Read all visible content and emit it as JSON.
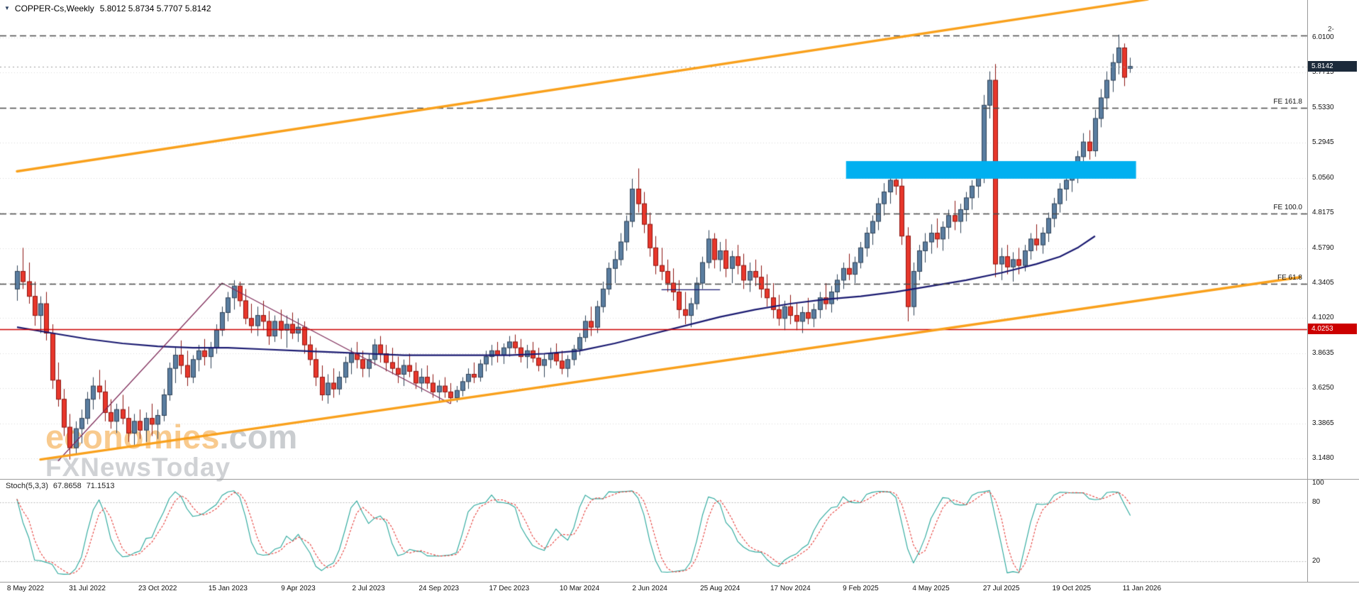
{
  "header": {
    "symbol_marker": "▼",
    "symbol": "COPPER-Cs,Weekly",
    "ohlc": "5.8012 5.8734 5.7707 5.8142"
  },
  "watermark": {
    "line1_main": "economies",
    "line1_suffix": ".com",
    "line2": "FXNewsToday"
  },
  "indicator": {
    "label": "Stoch(5,3,3)",
    "value_main": "67.8658",
    "value_signal": "71.1513"
  },
  "badges": {
    "current_price": "5.8142",
    "line_price": "4.0253"
  },
  "axis": {
    "stoch_ticks": [
      "100",
      "80",
      "20"
    ]
  },
  "annotations": {
    "fib_labels": [
      {
        "text": "FE 161.8",
        "price": 5.533
      },
      {
        "text": "FE 100.0",
        "price": 4.813
      },
      {
        "text": "FE 61.8",
        "price": 4.336
      }
    ],
    "top_right_label": {
      "text": "2-",
      "price": 6.025
    }
  },
  "colors": {
    "up": "#5a7da0",
    "up_border": "#2f4257",
    "down": "#e8372b",
    "down_border": "#8c1510",
    "ma": "#191970",
    "trend": "#f9a01b",
    "zone": "#00b0f0",
    "wave": "#7d2957",
    "stoch_k": "#26a69a",
    "stoch_d": "#e53935",
    "dashed": "#4a4a4a",
    "grid": "#d9d9d9",
    "hline": "#cc0000",
    "current_badge_bg": "#1c2a3a"
  },
  "chart_data": {
    "type": "candlestick",
    "symbol": "COPPER-Cs",
    "timeframe": "Weekly",
    "title": "COPPER-Cs,Weekly",
    "current_ohlc": {
      "open": 5.8012,
      "high": 5.8734,
      "low": 5.7707,
      "close": 5.8142
    },
    "current_price": 5.8142,
    "x_axis": {
      "label_step_weeks": 12,
      "labels": [
        "8 May 2022",
        "31 Jul 2022",
        "23 Oct 2022",
        "15 Jan 2023",
        "9 Apr 2023",
        "2 Jul 2023",
        "24 Sep 2023",
        "17 Dec 2023",
        "10 Mar 2024",
        "2 Jun 2024",
        "25 Aug 2024",
        "17 Nov 2024",
        "9 Feb 2025",
        "4 May 2025",
        "27 Jul 2025",
        "19 Oct 2025",
        "11 Jan 2026"
      ]
    },
    "y_axis": {
      "ticks": [
        6.01,
        5.7715,
        5.533,
        5.2945,
        5.056,
        4.8175,
        4.579,
        4.3405,
        4.102,
        3.8635,
        3.625,
        3.3865,
        3.148
      ]
    },
    "candles_ohlc": [
      [
        4.3,
        4.46,
        4.22,
        4.42
      ],
      [
        4.42,
        4.58,
        4.3,
        4.35
      ],
      [
        4.35,
        4.48,
        4.2,
        4.25
      ],
      [
        4.25,
        4.35,
        4.05,
        4.12
      ],
      [
        4.12,
        4.25,
        4.0,
        4.2
      ],
      [
        4.2,
        4.28,
        3.95,
        4.0
      ],
      [
        4.0,
        4.06,
        3.62,
        3.68
      ],
      [
        3.68,
        3.8,
        3.5,
        3.55
      ],
      [
        3.55,
        3.62,
        3.3,
        3.36
      ],
      [
        3.36,
        3.45,
        3.14,
        3.22
      ],
      [
        3.22,
        3.4,
        3.18,
        3.35
      ],
      [
        3.35,
        3.48,
        3.25,
        3.42
      ],
      [
        3.42,
        3.6,
        3.38,
        3.55
      ],
      [
        3.55,
        3.7,
        3.48,
        3.64
      ],
      [
        3.64,
        3.75,
        3.55,
        3.6
      ],
      [
        3.6,
        3.68,
        3.4,
        3.46
      ],
      [
        3.46,
        3.55,
        3.35,
        3.4
      ],
      [
        3.4,
        3.52,
        3.32,
        3.48
      ],
      [
        3.48,
        3.58,
        3.38,
        3.42
      ],
      [
        3.42,
        3.5,
        3.26,
        3.32
      ],
      [
        3.32,
        3.45,
        3.24,
        3.4
      ],
      [
        3.4,
        3.48,
        3.28,
        3.34
      ],
      [
        3.34,
        3.46,
        3.26,
        3.42
      ],
      [
        3.42,
        3.52,
        3.3,
        3.38
      ],
      [
        3.38,
        3.48,
        3.28,
        3.44
      ],
      [
        3.44,
        3.62,
        3.4,
        3.58
      ],
      [
        3.58,
        3.8,
        3.54,
        3.76
      ],
      [
        3.76,
        3.9,
        3.66,
        3.85
      ],
      [
        3.85,
        3.95,
        3.72,
        3.78
      ],
      [
        3.78,
        3.88,
        3.64,
        3.7
      ],
      [
        3.7,
        3.85,
        3.66,
        3.82
      ],
      [
        3.82,
        3.92,
        3.74,
        3.88
      ],
      [
        3.88,
        3.96,
        3.78,
        3.84
      ],
      [
        3.84,
        3.94,
        3.76,
        3.9
      ],
      [
        3.9,
        4.06,
        3.86,
        4.02
      ],
      [
        4.02,
        4.18,
        3.98,
        4.14
      ],
      [
        4.14,
        4.28,
        4.08,
        4.24
      ],
      [
        4.24,
        4.36,
        4.16,
        4.32
      ],
      [
        4.32,
        4.35,
        4.18,
        4.22
      ],
      [
        4.22,
        4.3,
        4.06,
        4.1
      ],
      [
        4.1,
        4.2,
        4.0,
        4.05
      ],
      [
        4.05,
        4.18,
        3.98,
        4.12
      ],
      [
        4.12,
        4.22,
        4.02,
        4.08
      ],
      [
        4.08,
        4.15,
        3.92,
        3.98
      ],
      [
        3.98,
        4.12,
        3.94,
        4.08
      ],
      [
        4.08,
        4.16,
        3.96,
        4.02
      ],
      [
        4.02,
        4.12,
        3.9,
        4.06
      ],
      [
        4.06,
        4.14,
        3.96,
        4.0
      ],
      [
        4.0,
        4.1,
        3.94,
        4.04
      ],
      [
        4.04,
        4.08,
        3.86,
        3.92
      ],
      [
        3.92,
        3.98,
        3.78,
        3.82
      ],
      [
        3.82,
        3.9,
        3.64,
        3.7
      ],
      [
        3.7,
        3.78,
        3.54,
        3.58
      ],
      [
        3.58,
        3.72,
        3.52,
        3.66
      ],
      [
        3.66,
        3.76,
        3.56,
        3.62
      ],
      [
        3.62,
        3.74,
        3.58,
        3.7
      ],
      [
        3.7,
        3.84,
        3.66,
        3.8
      ],
      [
        3.8,
        3.9,
        3.72,
        3.86
      ],
      [
        3.86,
        3.94,
        3.76,
        3.82
      ],
      [
        3.82,
        3.88,
        3.7,
        3.76
      ],
      [
        3.76,
        3.86,
        3.7,
        3.82
      ],
      [
        3.82,
        3.96,
        3.78,
        3.92
      ],
      [
        3.92,
        3.98,
        3.8,
        3.86
      ],
      [
        3.86,
        3.92,
        3.74,
        3.8
      ],
      [
        3.8,
        3.9,
        3.72,
        3.76
      ],
      [
        3.76,
        3.84,
        3.66,
        3.72
      ],
      [
        3.72,
        3.82,
        3.64,
        3.78
      ],
      [
        3.78,
        3.86,
        3.7,
        3.74
      ],
      [
        3.74,
        3.8,
        3.62,
        3.66
      ],
      [
        3.66,
        3.76,
        3.6,
        3.7
      ],
      [
        3.7,
        3.78,
        3.62,
        3.66
      ],
      [
        3.66,
        3.72,
        3.56,
        3.6
      ],
      [
        3.6,
        3.68,
        3.54,
        3.64
      ],
      [
        3.64,
        3.7,
        3.56,
        3.6
      ],
      [
        3.6,
        3.66,
        3.52,
        3.56
      ],
      [
        3.56,
        3.64,
        3.53,
        3.61
      ],
      [
        3.61,
        3.7,
        3.57,
        3.67
      ],
      [
        3.67,
        3.76,
        3.62,
        3.72
      ],
      [
        3.72,
        3.8,
        3.66,
        3.7
      ],
      [
        3.7,
        3.82,
        3.67,
        3.79
      ],
      [
        3.79,
        3.88,
        3.74,
        3.84
      ],
      [
        3.84,
        3.92,
        3.78,
        3.88
      ],
      [
        3.88,
        3.94,
        3.8,
        3.85
      ],
      [
        3.85,
        3.93,
        3.79,
        3.9
      ],
      [
        3.9,
        3.98,
        3.84,
        3.94
      ],
      [
        3.94,
        3.99,
        3.86,
        3.9
      ],
      [
        3.9,
        3.96,
        3.8,
        3.84
      ],
      [
        3.84,
        3.92,
        3.76,
        3.88
      ],
      [
        3.88,
        3.94,
        3.8,
        3.83
      ],
      [
        3.83,
        3.9,
        3.74,
        3.78
      ],
      [
        3.78,
        3.86,
        3.7,
        3.82
      ],
      [
        3.82,
        3.9,
        3.76,
        3.86
      ],
      [
        3.86,
        3.93,
        3.78,
        3.81
      ],
      [
        3.81,
        3.88,
        3.72,
        3.76
      ],
      [
        3.76,
        3.85,
        3.7,
        3.82
      ],
      [
        3.82,
        3.92,
        3.78,
        3.89
      ],
      [
        3.89,
        4.0,
        3.85,
        3.97
      ],
      [
        3.97,
        4.12,
        3.94,
        4.08
      ],
      [
        4.08,
        4.18,
        3.98,
        4.04
      ],
      [
        4.04,
        4.22,
        4.0,
        4.18
      ],
      [
        4.18,
        4.35,
        4.14,
        4.3
      ],
      [
        4.3,
        4.48,
        4.26,
        4.44
      ],
      [
        4.44,
        4.56,
        4.34,
        4.5
      ],
      [
        4.5,
        4.68,
        4.46,
        4.62
      ],
      [
        4.62,
        4.8,
        4.56,
        4.76
      ],
      [
        4.76,
        5.05,
        4.72,
        4.98
      ],
      [
        4.98,
        5.12,
        4.82,
        4.88
      ],
      [
        4.88,
        4.96,
        4.68,
        4.74
      ],
      [
        4.74,
        4.82,
        4.52,
        4.58
      ],
      [
        4.58,
        4.66,
        4.4,
        4.46
      ],
      [
        4.46,
        4.58,
        4.36,
        4.42
      ],
      [
        4.42,
        4.5,
        4.28,
        4.34
      ],
      [
        4.34,
        4.44,
        4.22,
        4.28
      ],
      [
        4.28,
        4.36,
        4.1,
        4.16
      ],
      [
        4.16,
        4.28,
        4.06,
        4.12
      ],
      [
        4.12,
        4.24,
        4.04,
        4.2
      ],
      [
        4.2,
        4.38,
        4.16,
        4.34
      ],
      [
        4.34,
        4.52,
        4.3,
        4.48
      ],
      [
        4.48,
        4.7,
        4.44,
        4.64
      ],
      [
        4.64,
        4.68,
        4.44,
        4.5
      ],
      [
        4.5,
        4.62,
        4.42,
        4.56
      ],
      [
        4.56,
        4.64,
        4.38,
        4.44
      ],
      [
        4.44,
        4.56,
        4.34,
        4.52
      ],
      [
        4.52,
        4.6,
        4.4,
        4.46
      ],
      [
        4.46,
        4.54,
        4.3,
        4.36
      ],
      [
        4.36,
        4.48,
        4.28,
        4.42
      ],
      [
        4.42,
        4.5,
        4.32,
        4.38
      ],
      [
        4.38,
        4.46,
        4.24,
        4.3
      ],
      [
        4.3,
        4.4,
        4.18,
        4.24
      ],
      [
        4.24,
        4.34,
        4.1,
        4.16
      ],
      [
        4.16,
        4.26,
        4.05,
        4.1
      ],
      [
        4.1,
        4.22,
        4.02,
        4.18
      ],
      [
        4.18,
        4.26,
        4.06,
        4.12
      ],
      [
        4.12,
        4.2,
        4.02,
        4.08
      ],
      [
        4.08,
        4.18,
        4.0,
        4.14
      ],
      [
        4.14,
        4.24,
        4.06,
        4.1
      ],
      [
        4.1,
        4.2,
        4.04,
        4.16
      ],
      [
        4.16,
        4.28,
        4.1,
        4.24
      ],
      [
        4.24,
        4.34,
        4.16,
        4.2
      ],
      [
        4.2,
        4.32,
        4.14,
        4.28
      ],
      [
        4.28,
        4.4,
        4.22,
        4.36
      ],
      [
        4.36,
        4.48,
        4.3,
        4.44
      ],
      [
        4.44,
        4.54,
        4.36,
        4.4
      ],
      [
        4.4,
        4.52,
        4.34,
        4.48
      ],
      [
        4.48,
        4.62,
        4.44,
        4.58
      ],
      [
        4.58,
        4.72,
        4.52,
        4.68
      ],
      [
        4.68,
        4.8,
        4.6,
        4.76
      ],
      [
        4.76,
        4.92,
        4.7,
        4.88
      ],
      [
        4.88,
        5.02,
        4.8,
        4.96
      ],
      [
        4.96,
        5.1,
        4.88,
        5.04
      ],
      [
        5.04,
        5.12,
        4.94,
        5.0
      ],
      [
        5.0,
        5.08,
        4.6,
        4.66
      ],
      [
        4.66,
        4.72,
        4.08,
        4.18
      ],
      [
        4.18,
        4.48,
        4.12,
        4.42
      ],
      [
        4.42,
        4.6,
        4.36,
        4.56
      ],
      [
        4.56,
        4.68,
        4.48,
        4.62
      ],
      [
        4.62,
        4.74,
        4.54,
        4.68
      ],
      [
        4.68,
        4.78,
        4.58,
        4.64
      ],
      [
        4.64,
        4.76,
        4.56,
        4.72
      ],
      [
        4.72,
        4.84,
        4.64,
        4.8
      ],
      [
        4.8,
        4.9,
        4.7,
        4.76
      ],
      [
        4.76,
        4.88,
        4.68,
        4.84
      ],
      [
        4.84,
        4.96,
        4.76,
        4.92
      ],
      [
        4.92,
        5.04,
        4.84,
        5.0
      ],
      [
        5.0,
        5.12,
        4.92,
        5.08
      ],
      [
        5.08,
        5.62,
        5.02,
        5.55
      ],
      [
        5.55,
        5.78,
        5.46,
        5.72
      ],
      [
        5.72,
        5.83,
        4.38,
        4.47
      ],
      [
        4.47,
        4.58,
        4.36,
        4.52
      ],
      [
        4.52,
        4.6,
        4.4,
        4.45
      ],
      [
        4.45,
        4.55,
        4.35,
        4.5
      ],
      [
        4.5,
        4.58,
        4.4,
        4.46
      ],
      [
        4.46,
        4.6,
        4.42,
        4.56
      ],
      [
        4.56,
        4.68,
        4.5,
        4.64
      ],
      [
        4.64,
        4.74,
        4.56,
        4.6
      ],
      [
        4.6,
        4.72,
        4.54,
        4.68
      ],
      [
        4.68,
        4.82,
        4.62,
        4.78
      ],
      [
        4.78,
        4.92,
        4.72,
        4.88
      ],
      [
        4.88,
        5.02,
        4.82,
        4.98
      ],
      [
        4.98,
        5.1,
        4.9,
        5.04
      ],
      [
        5.04,
        5.16,
        4.96,
        5.1
      ],
      [
        5.1,
        5.24,
        5.02,
        5.2
      ],
      [
        5.2,
        5.36,
        5.12,
        5.3
      ],
      [
        5.3,
        5.38,
        5.18,
        5.24
      ],
      [
        5.24,
        5.52,
        5.2,
        5.46
      ],
      [
        5.46,
        5.66,
        5.4,
        5.6
      ],
      [
        5.6,
        5.78,
        5.52,
        5.72
      ],
      [
        5.72,
        5.9,
        5.64,
        5.84
      ],
      [
        5.84,
        6.03,
        5.76,
        5.94
      ],
      [
        5.94,
        5.97,
        5.68,
        5.74
      ],
      [
        5.8012,
        5.8734,
        5.7707,
        5.8142
      ]
    ],
    "moving_average": {
      "points": [
        [
          0,
          4.04
        ],
        [
          6,
          4.0
        ],
        [
          12,
          3.96
        ],
        [
          18,
          3.93
        ],
        [
          24,
          3.91
        ],
        [
          30,
          3.9
        ],
        [
          36,
          3.9
        ],
        [
          42,
          3.89
        ],
        [
          48,
          3.88
        ],
        [
          54,
          3.87
        ],
        [
          60,
          3.86
        ],
        [
          66,
          3.85
        ],
        [
          72,
          3.85
        ],
        [
          78,
          3.85
        ],
        [
          84,
          3.85
        ],
        [
          90,
          3.86
        ],
        [
          96,
          3.88
        ],
        [
          102,
          3.93
        ],
        [
          108,
          3.99
        ],
        [
          114,
          4.05
        ],
        [
          120,
          4.11
        ],
        [
          126,
          4.16
        ],
        [
          132,
          4.2
        ],
        [
          138,
          4.23
        ],
        [
          144,
          4.25
        ],
        [
          150,
          4.28
        ],
        [
          156,
          4.32
        ],
        [
          162,
          4.36
        ],
        [
          168,
          4.41
        ],
        [
          174,
          4.47
        ],
        [
          178,
          4.52
        ],
        [
          181,
          4.58
        ],
        [
          184,
          4.66
        ]
      ]
    },
    "trendlines": [
      {
        "name": "upper-channel",
        "from": [
          0,
          5.1
        ],
        "to": [
          193,
          6.27
        ]
      },
      {
        "name": "lower-channel",
        "from": [
          4,
          3.14
        ],
        "to": [
          219,
          4.38
        ]
      }
    ],
    "wave_line": {
      "points": [
        [
          7,
          3.13
        ],
        [
          35,
          4.34
        ],
        [
          74,
          3.52
        ]
      ]
    },
    "support_segment": {
      "from": [
        110,
        4.295
      ],
      "to": [
        120,
        4.295
      ]
    },
    "zone": {
      "from_week": 141.5,
      "to_week": 191,
      "price_top": 5.17,
      "price_bottom": 5.05
    },
    "dashed_levels": [
      6.025,
      5.533,
      4.813,
      4.336
    ],
    "hlines": [
      {
        "price": 4.0253,
        "label": "4.0253"
      }
    ],
    "stochastic": {
      "settings": "Stoch(5,3,3)",
      "levels": [
        20,
        80
      ],
      "range": [
        0,
        100
      ]
    }
  }
}
